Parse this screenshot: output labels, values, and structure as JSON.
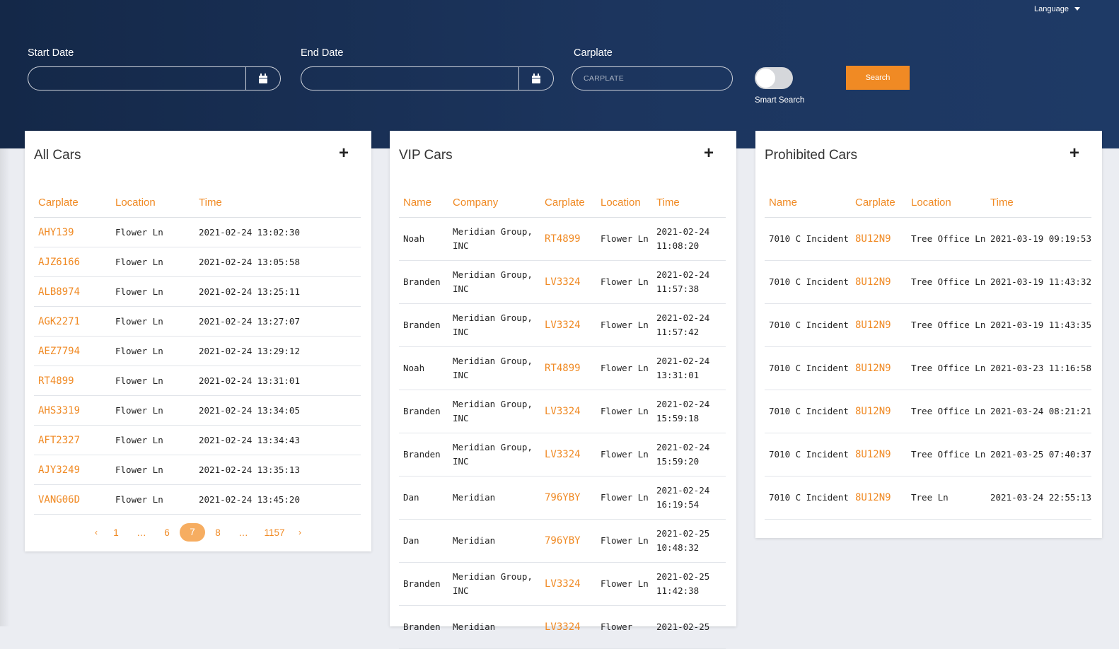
{
  "header": {
    "language_label": "Language",
    "start_date_label": "Start Date",
    "end_date_label": "End Date",
    "carplate_label": "Carplate",
    "carplate_placeholder": "CARPLATE",
    "smart_search_label": "Smart Search",
    "smart_search_on": false,
    "search_label": "Search"
  },
  "colors": {
    "accent": "#f08a24",
    "header": "#1c355e"
  },
  "all_cars": {
    "title": "All Cars",
    "add_icon": "plus-icon",
    "columns": [
      "Carplate",
      "Location",
      "Time"
    ],
    "rows": [
      [
        "AHY139",
        "Flower Ln",
        "2021-02-24 13:02:30"
      ],
      [
        "AJZ6166",
        "Flower Ln",
        "2021-02-24 13:05:58"
      ],
      [
        "ALB8974",
        "Flower Ln",
        "2021-02-24 13:25:11"
      ],
      [
        "AGK2271",
        "Flower Ln",
        "2021-02-24 13:27:07"
      ],
      [
        "AEZ7794",
        "Flower Ln",
        "2021-02-24 13:29:12"
      ],
      [
        "RT4899",
        "Flower Ln",
        "2021-02-24 13:31:01"
      ],
      [
        "AHS3319",
        "Flower Ln",
        "2021-02-24 13:34:05"
      ],
      [
        "AFT2327",
        "Flower Ln",
        "2021-02-24 13:34:43"
      ],
      [
        "AJY3249",
        "Flower Ln",
        "2021-02-24 13:35:13"
      ],
      [
        "VANG06D",
        "Flower Ln",
        "2021-02-24 13:45:20"
      ]
    ],
    "pagination": {
      "prev": "‹",
      "pages": [
        "1",
        "…",
        "6",
        "7",
        "8",
        "…",
        "1157"
      ],
      "current": "7",
      "next": "›"
    }
  },
  "vip_cars": {
    "title": "VIP Cars",
    "add_icon": "plus-icon",
    "columns": [
      "Name",
      "Company",
      "Carplate",
      "Location",
      "Time"
    ],
    "rows": [
      [
        "Noah",
        "Meridian Group, INC",
        "RT4899",
        "Flower Ln",
        "2021-02-24 11:08:20"
      ],
      [
        "Branden",
        "Meridian Group, INC",
        "LV3324",
        "Flower Ln",
        "2021-02-24 11:57:38"
      ],
      [
        "Branden",
        "Meridian Group, INC",
        "LV3324",
        "Flower Ln",
        "2021-02-24 11:57:42"
      ],
      [
        "Noah",
        "Meridian Group, INC",
        "RT4899",
        "Flower Ln",
        "2021-02-24 13:31:01"
      ],
      [
        "Branden",
        "Meridian Group, INC",
        "LV3324",
        "Flower Ln",
        "2021-02-24 15:59:18"
      ],
      [
        "Branden",
        "Meridian Group, INC",
        "LV3324",
        "Flower Ln",
        "2021-02-24 15:59:20"
      ],
      [
        "Dan",
        "Meridian",
        "796YBY",
        "Flower Ln",
        "2021-02-24 16:19:54"
      ],
      [
        "Dan",
        "Meridian",
        "796YBY",
        "Flower Ln",
        "2021-02-25 10:48:32"
      ],
      [
        "Branden",
        "Meridian Group, INC",
        "LV3324",
        "Flower Ln",
        "2021-02-25 11:42:38"
      ],
      [
        "Branden",
        "Meridian",
        "LV3324",
        "Flower",
        "2021-02-25"
      ]
    ]
  },
  "prohibited_cars": {
    "title": "Prohibited Cars",
    "add_icon": "plus-icon",
    "columns": [
      "Name",
      "Carplate",
      "Location",
      "Time"
    ],
    "rows": [
      [
        "7010 C Incident",
        "8U12N9",
        "Tree Office Ln",
        "2021-03-19 09:19:53"
      ],
      [
        "7010 C Incident",
        "8U12N9",
        "Tree Office Ln",
        "2021-03-19 11:43:32"
      ],
      [
        "7010 C Incident",
        "8U12N9",
        "Tree Office Ln",
        "2021-03-19 11:43:35"
      ],
      [
        "7010 C Incident",
        "8U12N9",
        "Tree Office Ln",
        "2021-03-23 11:16:58"
      ],
      [
        "7010 C Incident",
        "8U12N9",
        "Tree Office Ln",
        "2021-03-24 08:21:21"
      ],
      [
        "7010 C Incident",
        "8U12N9",
        "Tree Office Ln",
        "2021-03-25 07:40:37"
      ],
      [
        "7010 C Incident",
        "8U12N9",
        "Tree Ln",
        "2021-03-24 22:55:13"
      ]
    ]
  }
}
